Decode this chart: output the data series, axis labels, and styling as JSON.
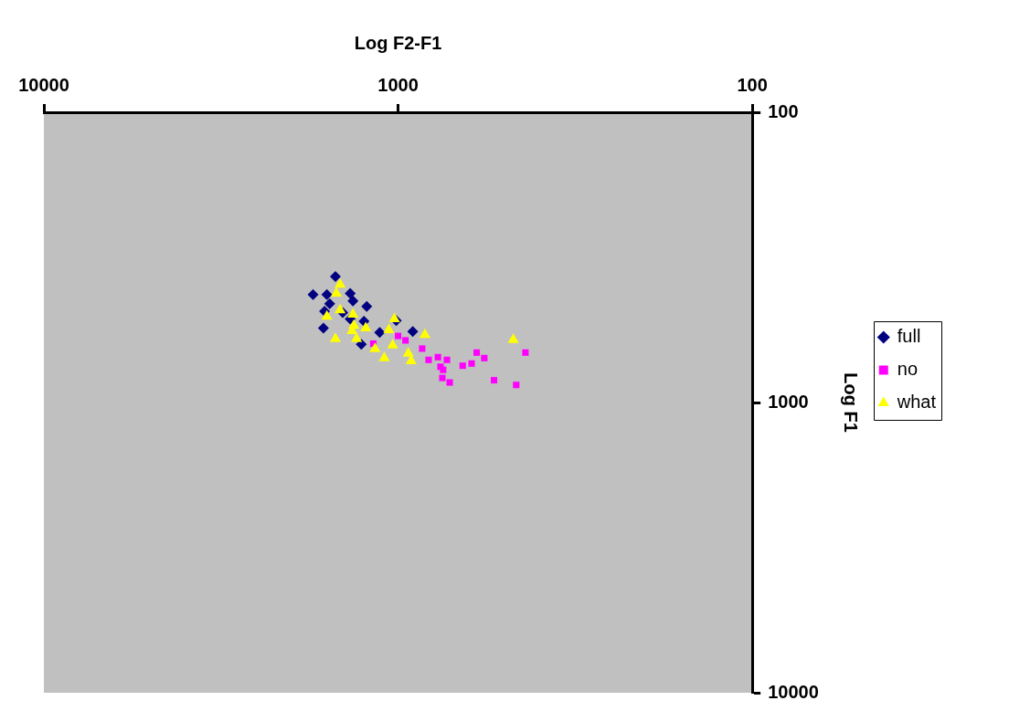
{
  "chart_data": {
    "type": "scatter",
    "xlabel": "Log F2-F1",
    "ylabel": "Log F1",
    "log": "xy",
    "xlim": [
      10000,
      100
    ],
    "xticks": [
      10000,
      1000,
      100
    ],
    "ylim": [
      10000,
      100
    ],
    "yticks": [
      10000,
      1000,
      100
    ],
    "grid": false,
    "legend": "right",
    "series": [
      {
        "name": "full",
        "color": "#000080",
        "marker": "diamond",
        "x": [
          1503,
          1738,
          1589,
          1365,
          1341,
          1226,
          1560,
          1613,
          1625,
          1433,
          1248,
          1127,
          1270,
          1012,
          909,
          1365
        ],
        "values": [
          368,
          425,
          425,
          421,
          447,
          467,
          457,
          485,
          554,
          490,
          525,
          574,
          630,
          522,
          570,
          516
        ]
      },
      {
        "name": "no",
        "color": "#ff00ff",
        "marker": "square",
        "x": [
          855,
          820,
          772,
          728,
          759,
          750,
          715,
          657,
          620,
          600,
          571,
          536,
          464,
          437,
          1175,
          1000,
          953,
          746
        ],
        "values": [
          652,
          713,
          698,
          713,
          753,
          823,
          853,
          747,
          734,
          673,
          703,
          838,
          870,
          673,
          627,
          590,
          611,
          772
        ]
      },
      {
        "name": "what",
        "color": "#ffff00",
        "marker": "triangle",
        "x": [
          1458,
          1494,
          1458,
          1589,
          1341,
          1333,
          1349,
          1234,
          1503,
          1310,
          1024,
          1062,
          1162,
          1036,
          1094,
          936,
          919,
          840,
          473
        ],
        "values": [
          392,
          421,
          480,
          505,
          497,
          543,
          566,
          554,
          603,
          603,
          516,
          562,
          654,
          635,
          703,
          678,
          719,
          584,
          608
        ]
      }
    ]
  }
}
